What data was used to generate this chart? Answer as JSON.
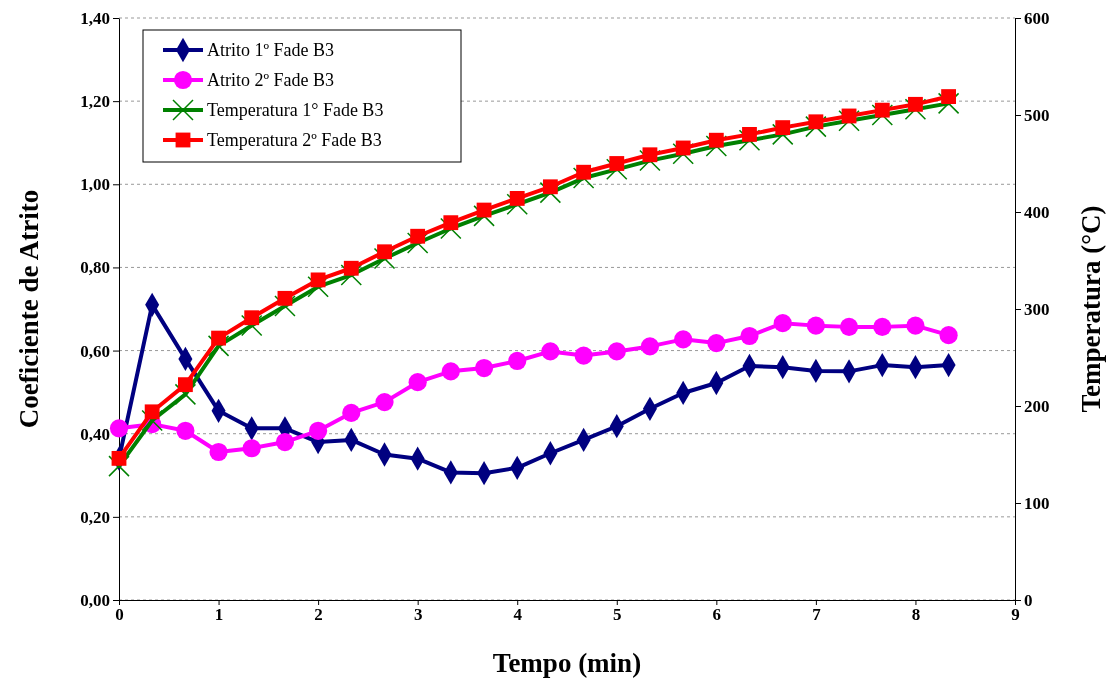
{
  "chart_data": {
    "type": "line",
    "xlabel": "Tempo (min)",
    "ylabel": "Coeficiente de Atrito",
    "y2label": "Temperatura (°C)",
    "x": [
      0,
      0.333,
      0.667,
      1,
      1.333,
      1.667,
      2,
      2.333,
      2.667,
      3,
      3.333,
      3.667,
      4,
      4.333,
      4.667,
      5,
      5.333,
      5.667,
      6,
      6.333,
      6.667,
      7,
      7.333,
      7.667,
      8,
      8.333
    ],
    "xlim": [
      0,
      9
    ],
    "xticks": [
      0,
      1,
      2,
      3,
      4,
      5,
      6,
      7,
      8,
      9
    ],
    "ylim": [
      0,
      1.4
    ],
    "yticks": [
      {
        "value": 0,
        "label": "0,00"
      },
      {
        "value": 0.2,
        "label": "0,20"
      },
      {
        "value": 0.4,
        "label": "0,40"
      },
      {
        "value": 0.6,
        "label": "0,60"
      },
      {
        "value": 0.8,
        "label": "0,80"
      },
      {
        "value": 1,
        "label": "1,00"
      },
      {
        "value": 1.2,
        "label": "1,20"
      },
      {
        "value": 1.4,
        "label": "1,40"
      }
    ],
    "y2lim": [
      0,
      600
    ],
    "y2ticks": [
      0,
      100,
      200,
      300,
      400,
      500,
      600
    ],
    "grid": "y",
    "legend": "top left",
    "series": [
      {
        "name": "Atrito 1º Fade B3",
        "color": "#000080",
        "marker": "diamond",
        "values": [
          0.34,
          0.71,
          0.58,
          0.455,
          0.413,
          0.413,
          0.38,
          0.385,
          0.35,
          0.34,
          0.307,
          0.305,
          0.318,
          0.353,
          0.385,
          0.418,
          0.46,
          0.498,
          0.522,
          0.563,
          0.56,
          0.551,
          0.55,
          0.565,
          0.56,
          0.565
        ]
      },
      {
        "name": "Atrito 2º Fade B3",
        "color": "#ff00ff",
        "marker": "circle",
        "values": [
          0.413,
          0.423,
          0.407,
          0.356,
          0.365,
          0.38,
          0.407,
          0.45,
          0.476,
          0.524,
          0.55,
          0.558,
          0.575,
          0.598,
          0.588,
          0.598,
          0.61,
          0.627,
          0.618,
          0.635,
          0.666,
          0.66,
          0.657,
          0.657,
          0.66,
          0.637
        ]
      },
      {
        "name": "Temperatura 1° Fade B3",
        "color": "#008000",
        "marker": "cross",
        "axis": "y2",
        "values": [
          138,
          185,
          212,
          262,
          283,
          303,
          323,
          335,
          352,
          368,
          383,
          396,
          408,
          420,
          435,
          444,
          453,
          460,
          468,
          474,
          480,
          488,
          494,
          500,
          506,
          512
        ]
      },
      {
        "name": "Temperatura 2º Fade B3",
        "color": "#ff0000",
        "marker": "square",
        "axis": "y2",
        "values": [
          146,
          194,
          222,
          270,
          291,
          311,
          330,
          342,
          359,
          375,
          389,
          402,
          414,
          426,
          441,
          450,
          459,
          466,
          474,
          480,
          487,
          493,
          499,
          505,
          511,
          519
        ]
      }
    ]
  }
}
